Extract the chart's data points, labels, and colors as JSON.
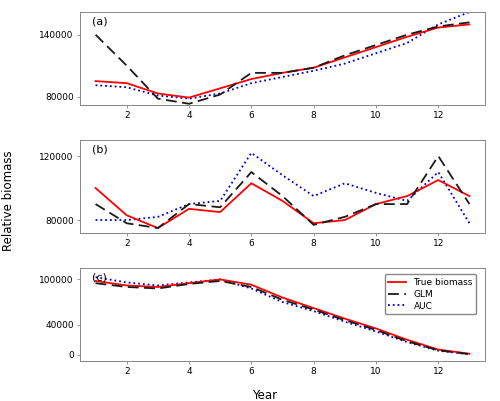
{
  "years": [
    1,
    2,
    3,
    4,
    5,
    6,
    7,
    8,
    9,
    10,
    11,
    12,
    13
  ],
  "panel_a": {
    "label": "(a)",
    "true": [
      95000,
      93000,
      83000,
      79000,
      88000,
      97000,
      103000,
      108000,
      118000,
      128000,
      138000,
      147000,
      150000
    ],
    "glm": [
      140000,
      110000,
      78000,
      73000,
      82000,
      103000,
      103000,
      108000,
      120000,
      130000,
      140000,
      148000,
      152000
    ],
    "auc": [
      91000,
      89000,
      81000,
      78000,
      83000,
      93000,
      99000,
      105000,
      112000,
      122000,
      132000,
      150000,
      162000
    ],
    "ylim": [
      72000,
      162000
    ],
    "yticks": [
      80000,
      140000
    ]
  },
  "panel_b": {
    "label": "(b)",
    "true": [
      100000,
      83000,
      75000,
      87000,
      85000,
      103000,
      92000,
      78000,
      80000,
      90000,
      95000,
      105000,
      95000
    ],
    "glm": [
      90000,
      78000,
      75000,
      90000,
      88000,
      110000,
      95000,
      77000,
      82000,
      90000,
      90000,
      120000,
      90000
    ],
    "auc": [
      80000,
      80000,
      82000,
      90000,
      92000,
      122000,
      108000,
      95000,
      103000,
      97000,
      92000,
      110000,
      78000
    ],
    "ylim": [
      72000,
      130000
    ],
    "yticks": [
      80000,
      120000
    ]
  },
  "panel_c": {
    "label": "(c)",
    "true": [
      98000,
      92000,
      90000,
      95000,
      100000,
      93000,
      76000,
      62000,
      48000,
      35000,
      20000,
      7000,
      1500
    ],
    "glm": [
      95000,
      90000,
      88000,
      94000,
      98000,
      90000,
      73000,
      60000,
      46000,
      33000,
      18000,
      6000,
      1000
    ],
    "auc": [
      103000,
      96000,
      92000,
      96000,
      100000,
      88000,
      70000,
      58000,
      44000,
      31000,
      17000,
      5500,
      800
    ],
    "ylim": [
      -8000,
      115000
    ],
    "yticks": [
      0,
      40000,
      100000
    ]
  },
  "true_color": "#FF0000",
  "glm_color": "#1a1a1a",
  "auc_color": "#0000CD",
  "panel_bg": "#FFFFFF",
  "fig_bg": "#FFFFFF",
  "xlabel": "Year",
  "ylabel": "Relative biomass",
  "legend_labels": [
    "True biomass",
    "GLM",
    "AUC"
  ]
}
